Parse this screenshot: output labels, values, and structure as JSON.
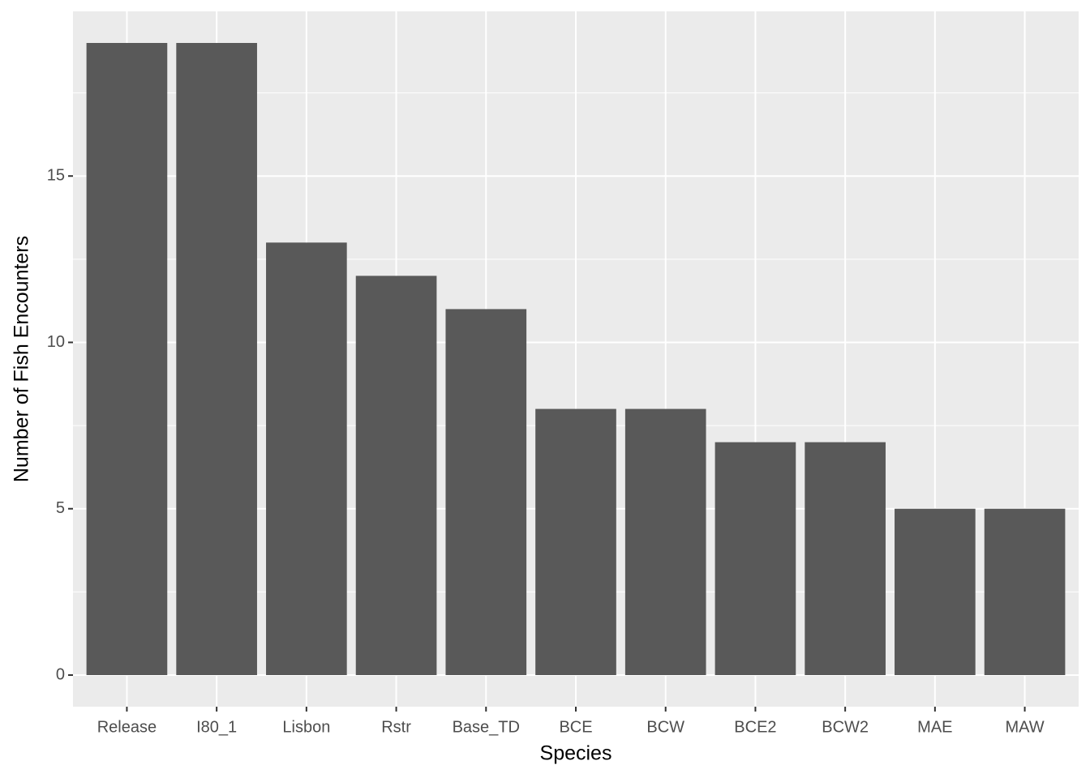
{
  "chart_data": {
    "type": "bar",
    "x_label": "Species",
    "y_label": "Number of Fish Encounters",
    "categories": [
      "Release",
      "I80_1",
      "Lisbon",
      "Rstr",
      "Base_TD",
      "BCE",
      "BCW",
      "BCE2",
      "BCW2",
      "MAE",
      "MAW"
    ],
    "values": [
      19,
      19,
      13,
      12,
      11,
      8,
      8,
      7,
      7,
      5,
      5
    ],
    "color": "#595959",
    "ylim": [
      -0.95,
      19.95
    ],
    "yticks": [
      0,
      5,
      10,
      15
    ],
    "grid": true
  }
}
